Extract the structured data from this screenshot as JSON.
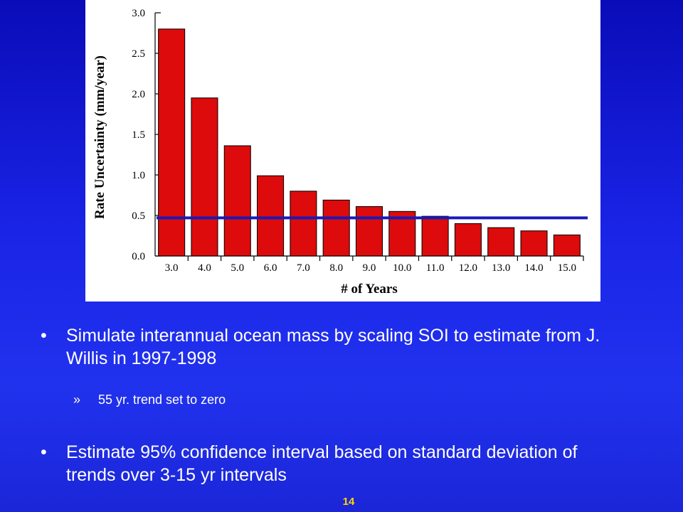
{
  "chart_data": {
    "type": "bar",
    "categories": [
      "3.0",
      "4.0",
      "5.0",
      "6.0",
      "7.0",
      "8.0",
      "9.0",
      "10.0",
      "11.0",
      "12.0",
      "13.0",
      "14.0",
      "15.0"
    ],
    "values": [
      2.8,
      1.95,
      1.36,
      0.99,
      0.8,
      0.69,
      0.61,
      0.55,
      0.49,
      0.4,
      0.35,
      0.31,
      0.26
    ],
    "xlabel": "# of Years",
    "ylabel": "Rate Uncertainty (mm/year)",
    "ylim": [
      0,
      3.0
    ],
    "yticks": [
      "0.0",
      "0.5",
      "1.0",
      "1.5",
      "2.0",
      "2.5",
      "3.0"
    ],
    "reference_line": 0.47,
    "bar_color": "#dd0b0b",
    "reference_line_color": "#1a1ab8",
    "grid": false
  },
  "bullets": [
    {
      "marker": "•",
      "text": "Simulate interannual ocean mass by scaling SOI to estimate from J. Willis in 1997-1998"
    },
    {
      "marker": "•",
      "text": "Estimate 95% confidence interval based on standard deviation of trends over 3-15 yr intervals"
    }
  ],
  "sub_bullet": {
    "marker": "»",
    "text": "55 yr. trend set to zero"
  },
  "page_number": "14",
  "colors": {
    "background": "#1a24e6",
    "text": "#ffffff",
    "page_number": "#ffd700"
  }
}
